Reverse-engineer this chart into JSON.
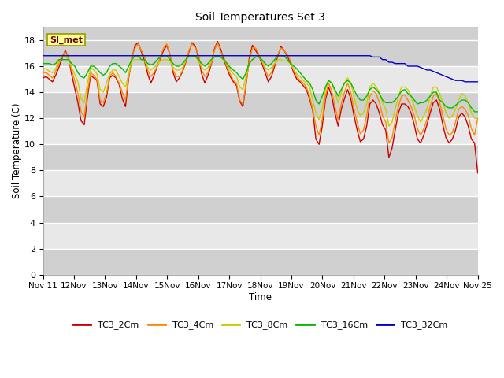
{
  "title": "Soil Temperatures Set 3",
  "xlabel": "Time",
  "ylabel": "Soil Temperature (C)",
  "ylim": [
    0,
    19
  ],
  "yticks": [
    0,
    2,
    4,
    6,
    8,
    10,
    12,
    14,
    16,
    18
  ],
  "background_color": "#ffffff",
  "band_colors": [
    "#d0d0d0",
    "#e8e8e8"
  ],
  "series_colors": {
    "TC3_2Cm": "#cc0000",
    "TC3_4Cm": "#ff8800",
    "TC3_8Cm": "#cccc00",
    "TC3_16Cm": "#00bb00",
    "TC3_32Cm": "#0000cc"
  },
  "annotation_text": "SI_met",
  "annotation_bg": "#ffff99",
  "annotation_border": "#999900",
  "xtick_labels": [
    "Nov 11",
    "12Nov",
    "13Nov",
    "14Nov",
    "15Nov",
    "16Nov",
    "17Nov",
    "18Nov",
    "19Nov",
    "20Nov",
    "21Nov",
    "22Nov",
    "23Nov",
    "24Nov",
    "Nov 25"
  ],
  "TC3_2Cm": [
    15.1,
    15.2,
    15.0,
    14.8,
    15.3,
    15.9,
    16.6,
    17.2,
    16.7,
    15.4,
    14.3,
    13.2,
    11.8,
    11.5,
    13.6,
    15.3,
    15.1,
    14.9,
    13.1,
    12.9,
    13.6,
    15.1,
    15.3,
    15.1,
    14.6,
    13.5,
    12.9,
    15.1,
    16.6,
    17.6,
    17.8,
    17.1,
    16.4,
    15.4,
    14.7,
    15.3,
    16.0,
    16.6,
    17.2,
    17.6,
    16.9,
    15.5,
    14.8,
    15.1,
    15.6,
    16.3,
    17.1,
    17.8,
    17.5,
    16.7,
    15.4,
    14.7,
    15.3,
    16.1,
    17.3,
    17.9,
    17.3,
    16.5,
    15.8,
    15.2,
    14.8,
    14.5,
    13.3,
    12.9,
    14.6,
    16.6,
    17.6,
    17.2,
    16.8,
    16.2,
    15.5,
    14.8,
    15.2,
    16.0,
    16.8,
    17.5,
    17.2,
    16.8,
    16.2,
    15.5,
    15.0,
    14.8,
    14.5,
    14.2,
    13.5,
    12.6,
    10.4,
    10.0,
    11.4,
    13.4,
    14.4,
    13.7,
    12.4,
    11.4,
    12.7,
    13.5,
    14.2,
    13.5,
    12.2,
    11.1,
    10.2,
    10.4,
    11.4,
    13.1,
    13.4,
    13.1,
    12.4,
    11.5,
    11.1,
    9.0,
    9.7,
    11.1,
    12.4,
    13.1,
    13.1,
    12.9,
    12.4,
    11.5,
    10.4,
    10.1,
    10.7,
    11.5,
    12.4,
    13.2,
    13.4,
    12.7,
    11.5,
    10.5,
    10.1,
    10.4,
    11.1,
    12.1,
    12.4,
    12.1,
    11.4,
    10.4,
    10.1,
    7.8
  ],
  "TC3_4Cm": [
    15.5,
    15.5,
    15.3,
    15.1,
    15.6,
    16.2,
    16.8,
    17.1,
    16.7,
    15.7,
    14.9,
    13.9,
    12.5,
    12.1,
    14.0,
    15.5,
    15.3,
    15.0,
    13.4,
    13.2,
    13.9,
    15.2,
    15.5,
    15.2,
    14.7,
    14.0,
    13.4,
    15.2,
    16.7,
    17.4,
    17.7,
    17.2,
    16.7,
    15.7,
    15.2,
    15.5,
    16.0,
    16.7,
    17.4,
    17.7,
    16.9,
    15.7,
    15.2,
    15.2,
    15.7,
    16.4,
    17.2,
    17.7,
    17.4,
    16.9,
    15.7,
    15.2,
    15.5,
    16.2,
    17.2,
    17.8,
    17.1,
    16.7,
    15.9,
    15.4,
    14.9,
    14.7,
    13.4,
    13.1,
    14.7,
    16.4,
    17.4,
    17.4,
    16.9,
    16.4,
    15.7,
    15.2,
    15.5,
    16.2,
    16.9,
    17.4,
    17.2,
    16.9,
    16.4,
    15.7,
    15.2,
    14.9,
    14.7,
    14.4,
    13.7,
    12.7,
    11.4,
    10.7,
    11.9,
    13.7,
    14.7,
    14.1,
    12.9,
    11.9,
    13.1,
    14.0,
    14.7,
    14.0,
    12.7,
    11.7,
    10.8,
    11.1,
    12.2,
    13.7,
    14.1,
    13.9,
    13.2,
    12.2,
    11.7,
    10.1,
    10.5,
    11.8,
    12.9,
    13.7,
    13.8,
    13.4,
    12.9,
    12.2,
    11.2,
    10.7,
    11.2,
    11.9,
    12.9,
    13.7,
    13.9,
    13.2,
    12.2,
    11.2,
    10.7,
    10.9,
    11.7,
    12.7,
    12.9,
    12.7,
    12.2,
    11.2,
    10.7,
    12.0
  ],
  "TC3_8Cm": [
    15.8,
    15.8,
    15.6,
    15.5,
    15.8,
    16.4,
    16.7,
    16.8,
    16.5,
    15.9,
    15.4,
    14.8,
    13.5,
    13.2,
    14.7,
    15.9,
    15.7,
    15.4,
    14.2,
    14.0,
    14.7,
    15.4,
    15.7,
    15.7,
    15.2,
    14.7,
    14.4,
    15.4,
    16.4,
    16.5,
    16.5,
    16.5,
    16.4,
    15.9,
    15.7,
    15.9,
    16.1,
    16.4,
    16.5,
    16.5,
    16.4,
    15.9,
    15.7,
    15.7,
    15.9,
    16.4,
    16.7,
    16.8,
    16.7,
    16.4,
    15.9,
    15.7,
    15.9,
    16.4,
    16.7,
    16.8,
    16.7,
    16.4,
    16.2,
    15.7,
    15.4,
    15.2,
    14.4,
    14.2,
    15.2,
    16.2,
    16.5,
    16.7,
    16.7,
    16.4,
    15.9,
    15.7,
    15.9,
    16.2,
    16.5,
    16.5,
    16.4,
    16.4,
    16.2,
    15.7,
    15.4,
    15.2,
    14.9,
    14.7,
    14.4,
    13.4,
    12.4,
    11.9,
    12.7,
    14.2,
    14.9,
    14.7,
    14.0,
    13.2,
    13.9,
    14.7,
    15.1,
    14.7,
    13.7,
    12.7,
    12.2,
    12.4,
    13.1,
    14.4,
    14.7,
    14.4,
    14.0,
    13.2,
    12.7,
    11.4,
    11.7,
    12.7,
    13.7,
    14.4,
    14.4,
    14.2,
    13.7,
    12.9,
    12.2,
    11.7,
    12.2,
    12.7,
    13.7,
    14.4,
    14.4,
    13.9,
    13.2,
    12.4,
    12.0,
    12.2,
    12.7,
    13.4,
    13.9,
    13.7,
    13.2,
    12.4,
    12.0,
    12.0
  ],
  "TC3_16Cm": [
    16.2,
    16.2,
    16.2,
    16.1,
    16.2,
    16.5,
    16.5,
    16.5,
    16.5,
    16.2,
    16.0,
    15.5,
    15.2,
    15.1,
    15.5,
    16.0,
    16.0,
    15.8,
    15.5,
    15.3,
    15.5,
    16.0,
    16.2,
    16.2,
    16.0,
    15.8,
    15.5,
    16.0,
    16.5,
    16.8,
    16.8,
    16.5,
    16.5,
    16.2,
    16.1,
    16.2,
    16.5,
    16.7,
    16.8,
    16.8,
    16.5,
    16.2,
    16.0,
    16.0,
    16.2,
    16.5,
    16.8,
    16.8,
    16.8,
    16.5,
    16.2,
    16.0,
    16.2,
    16.5,
    16.7,
    16.8,
    16.7,
    16.5,
    16.2,
    15.9,
    15.7,
    15.5,
    15.2,
    15.0,
    15.5,
    16.2,
    16.5,
    16.7,
    16.7,
    16.5,
    16.2,
    16.0,
    16.2,
    16.5,
    16.8,
    16.8,
    16.8,
    16.5,
    16.2,
    16.0,
    15.8,
    15.5,
    15.2,
    14.9,
    14.7,
    14.2,
    13.4,
    13.1,
    13.7,
    14.4,
    14.9,
    14.7,
    14.2,
    13.7,
    14.2,
    14.7,
    14.9,
    14.7,
    14.2,
    13.7,
    13.4,
    13.4,
    13.7,
    14.2,
    14.4,
    14.2,
    13.9,
    13.4,
    13.2,
    13.2,
    13.2,
    13.4,
    13.7,
    14.1,
    14.2,
    13.9,
    13.7,
    13.4,
    13.1,
    13.2,
    13.2,
    13.4,
    13.7,
    14.0,
    14.0,
    13.4,
    13.2,
    12.9,
    12.8,
    12.8,
    13.0,
    13.2,
    13.4,
    13.4,
    13.2,
    12.8,
    12.5,
    12.5
  ],
  "TC3_32Cm": [
    16.8,
    16.8,
    16.8,
    16.8,
    16.8,
    16.8,
    16.8,
    16.8,
    16.8,
    16.8,
    16.8,
    16.8,
    16.8,
    16.8,
    16.8,
    16.8,
    16.8,
    16.8,
    16.8,
    16.8,
    16.8,
    16.8,
    16.8,
    16.8,
    16.8,
    16.8,
    16.8,
    16.8,
    16.8,
    16.8,
    16.8,
    16.8,
    16.8,
    16.8,
    16.8,
    16.8,
    16.8,
    16.8,
    16.8,
    16.8,
    16.8,
    16.8,
    16.8,
    16.8,
    16.8,
    16.8,
    16.8,
    16.8,
    16.8,
    16.8,
    16.8,
    16.8,
    16.8,
    16.8,
    16.8,
    16.8,
    16.8,
    16.8,
    16.8,
    16.8,
    16.8,
    16.8,
    16.8,
    16.8,
    16.8,
    16.8,
    16.8,
    16.8,
    16.8,
    16.8,
    16.8,
    16.8,
    16.8,
    16.8,
    16.8,
    16.8,
    16.8,
    16.8,
    16.8,
    16.8,
    16.8,
    16.8,
    16.8,
    16.8,
    16.8,
    16.8,
    16.8,
    16.8,
    16.8,
    16.8,
    16.8,
    16.8,
    16.8,
    16.8,
    16.8,
    16.8,
    16.8,
    16.8,
    16.8,
    16.8,
    16.8,
    16.8,
    16.8,
    16.8,
    16.7,
    16.7,
    16.7,
    16.5,
    16.5,
    16.3,
    16.3,
    16.2,
    16.2,
    16.2,
    16.2,
    16.0,
    16.0,
    16.0,
    16.0,
    15.9,
    15.8,
    15.7,
    15.7,
    15.6,
    15.5,
    15.4,
    15.3,
    15.2,
    15.1,
    15.0,
    14.9,
    14.9,
    14.9,
    14.8,
    14.8,
    14.8,
    14.8,
    14.8
  ]
}
